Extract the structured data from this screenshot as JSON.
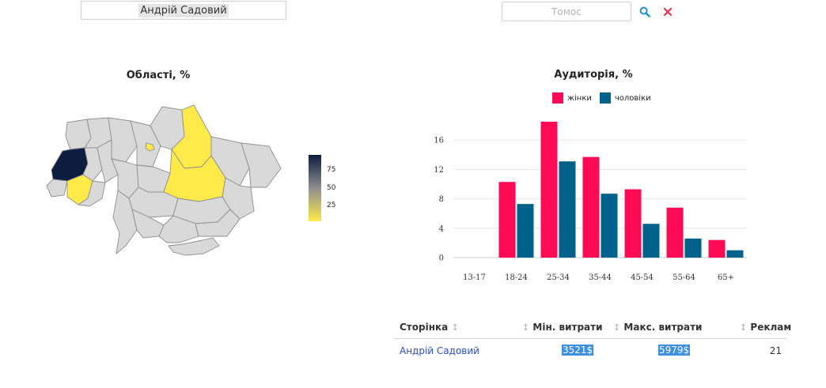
{
  "filters": {
    "page_value": "Андрій Садовий",
    "topic_placeholder": "Томос",
    "search_icon": "search-icon",
    "clear_icon": "close-icon"
  },
  "map": {
    "title": "Області, %",
    "colorbar_ticks": [
      "75",
      "50",
      "25"
    ],
    "colors": {
      "high": "#0c1d40",
      "mid": "#8e8e8e",
      "low": "#ffea4a",
      "empty": "#d9d9d9"
    }
  },
  "chart_data": {
    "type": "bar",
    "title": "Аудиторія, %",
    "categories": [
      "13-17",
      "18-24",
      "25-34",
      "35-44",
      "45-54",
      "55-64",
      "65+"
    ],
    "series": [
      {
        "name": "жінки",
        "color": "#ff0a54",
        "values": [
          0,
          10.3,
          18.5,
          13.7,
          9.3,
          6.8,
          2.4
        ]
      },
      {
        "name": "чоловіки",
        "color": "#00628b",
        "values": [
          0,
          7.3,
          13.1,
          8.7,
          4.6,
          2.6,
          1.0
        ]
      }
    ],
    "ylim": [
      0,
      18.5
    ],
    "yticks": [
      0,
      4,
      8,
      12,
      16
    ],
    "grid": true,
    "legend": "top"
  },
  "table": {
    "headers": [
      "Сторінка",
      "Мін. витрати",
      "Макс. витрати",
      "Реклам"
    ],
    "rows": [
      {
        "page": "Андрій Садовий",
        "min": "3521$",
        "max": "5979$",
        "ads": "21"
      }
    ]
  }
}
